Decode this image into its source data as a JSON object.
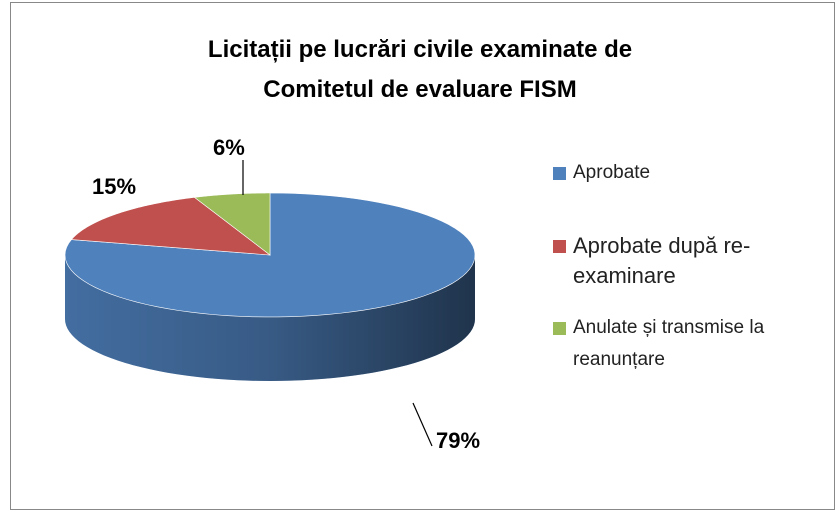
{
  "chart_data": {
    "type": "pie",
    "title": "Licitații pe lucrări civile examinate de Comitetul de evaluare FISM",
    "categories": [
      "Aprobate",
      "Aprobate după re-examinare",
      "Anulate și transmise la reanunțare"
    ],
    "values": [
      79,
      15,
      6
    ],
    "value_labels": [
      "79%",
      "15%",
      "6%"
    ],
    "colors": [
      "#4f81bd",
      "#c0504d",
      "#9bbb59"
    ],
    "legend": "right"
  }
}
